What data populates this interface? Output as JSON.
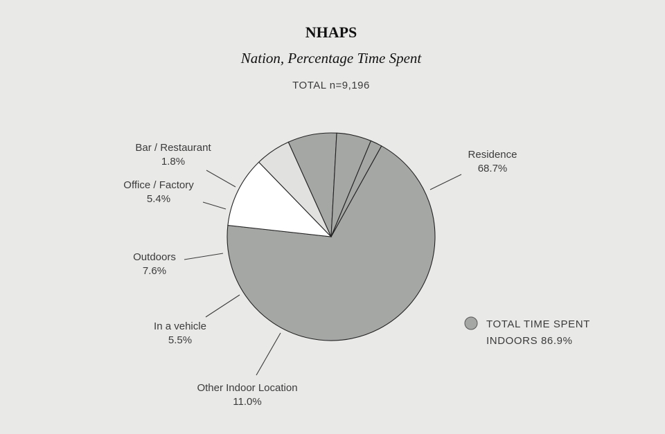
{
  "chart_data": {
    "type": "pie",
    "title": "NHAPS",
    "subtitle": "Nation, Percentage Time Spent",
    "total_label": "TOTAL n=9,196",
    "slices": [
      {
        "name": "Residence",
        "value_label": "68.7%",
        "value": 68.7,
        "color": "#a5a7a5"
      },
      {
        "name": "Other Indoor Location",
        "value_label": "11.0%",
        "value": 11.0,
        "color": "#ffffff"
      },
      {
        "name": "In a vehicle",
        "value_label": "5.5%",
        "value": 5.5,
        "color": "#e1e2e0"
      },
      {
        "name": "Outdoors",
        "value_label": "7.6%",
        "value": 7.6,
        "color": "#a5a7a5"
      },
      {
        "name": "Office / Factory",
        "value_label": "5.4%",
        "value": 5.4,
        "color": "#a5a7a5"
      },
      {
        "name": "Bar / Restaurant",
        "value_label": "1.8%",
        "value": 1.8,
        "color": "#a5a7a5"
      }
    ],
    "legend": {
      "line1": "TOTAL TIME SPENT",
      "line2": "INDOORS 86.9%",
      "color": "#a5a7a5",
      "placement": "right"
    }
  }
}
